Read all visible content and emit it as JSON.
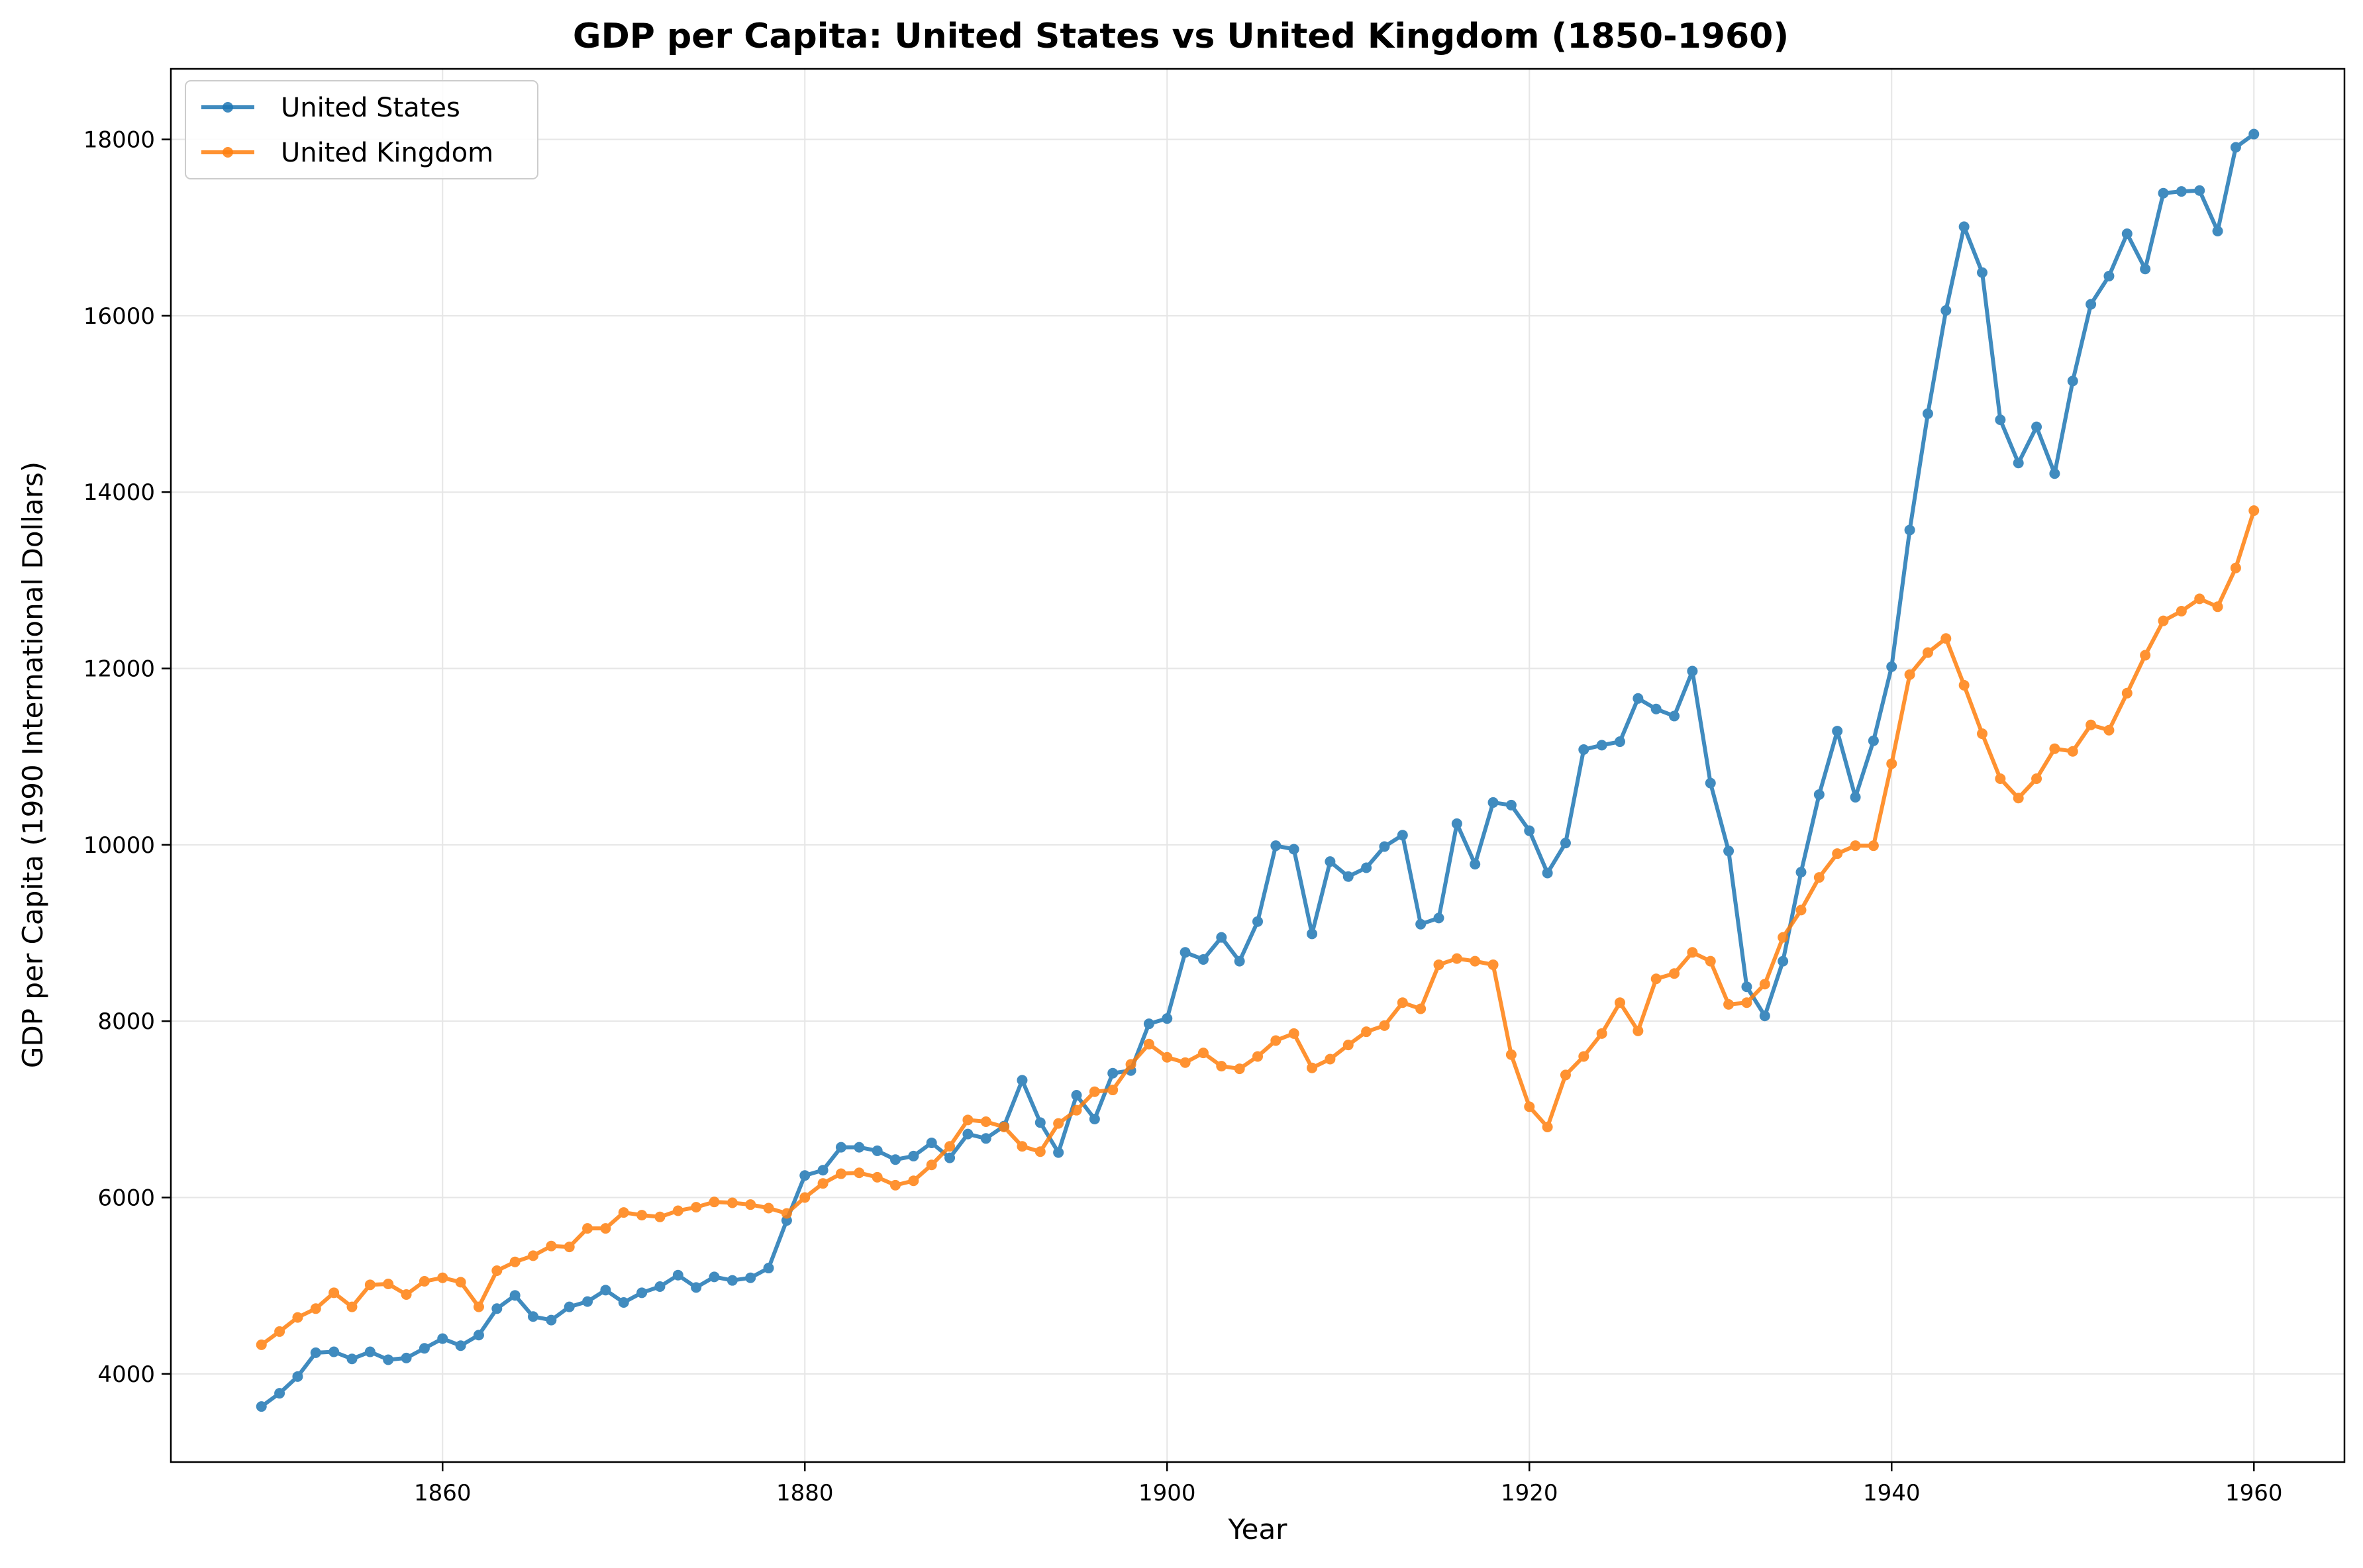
{
  "chart_data": {
    "type": "line",
    "title": "GDP per Capita: United States vs United Kingdom (1850-1960)",
    "xlabel": "Year",
    "ylabel": "GDP per Capita (1990 International Dollars)",
    "xlim": [
      1845,
      1965
    ],
    "ylim": [
      3000,
      18800
    ],
    "xticks": [
      1860,
      1880,
      1900,
      1920,
      1940,
      1960
    ],
    "yticks": [
      4000,
      6000,
      8000,
      10000,
      12000,
      14000,
      16000,
      18000
    ],
    "grid": true,
    "legend_position": "top-left",
    "x": [
      1850,
      1851,
      1852,
      1853,
      1854,
      1855,
      1856,
      1857,
      1858,
      1859,
      1860,
      1861,
      1862,
      1863,
      1864,
      1865,
      1866,
      1867,
      1868,
      1869,
      1870,
      1871,
      1872,
      1873,
      1874,
      1875,
      1876,
      1877,
      1878,
      1879,
      1880,
      1881,
      1882,
      1883,
      1884,
      1885,
      1886,
      1887,
      1888,
      1889,
      1890,
      1891,
      1892,
      1893,
      1894,
      1895,
      1896,
      1897,
      1898,
      1899,
      1900,
      1901,
      1902,
      1903,
      1904,
      1905,
      1906,
      1907,
      1908,
      1909,
      1910,
      1911,
      1912,
      1913,
      1914,
      1915,
      1916,
      1917,
      1918,
      1919,
      1920,
      1921,
      1922,
      1923,
      1924,
      1925,
      1926,
      1927,
      1928,
      1929,
      1930,
      1931,
      1932,
      1933,
      1934,
      1935,
      1936,
      1937,
      1938,
      1939,
      1940,
      1941,
      1942,
      1943,
      1944,
      1945,
      1946,
      1947,
      1948,
      1949,
      1950,
      1951,
      1952,
      1953,
      1954,
      1955,
      1956,
      1957,
      1958,
      1959,
      1960
    ],
    "series": [
      {
        "name": "United States",
        "color": "#1f77b4",
        "values": [
          3630,
          3780,
          3970,
          4240,
          4250,
          4170,
          4250,
          4160,
          4180,
          4290,
          4400,
          4320,
          4440,
          4740,
          4890,
          4650,
          4610,
          4760,
          4820,
          4950,
          4810,
          4920,
          4990,
          5120,
          4980,
          5100,
          5060,
          5090,
          5200,
          5740,
          6250,
          6310,
          6570,
          6570,
          6530,
          6430,
          6470,
          6620,
          6450,
          6720,
          6670,
          6810,
          7330,
          6850,
          6510,
          7160,
          6890,
          7410,
          7440,
          7970,
          8030,
          8780,
          8700,
          8950,
          8680,
          9130,
          9990,
          9950,
          8990,
          9810,
          9640,
          9740,
          9980,
          10110,
          9100,
          9170,
          10240,
          9780,
          10480,
          10450,
          10160,
          9680,
          10020,
          11080,
          11130,
          11170,
          11660,
          11540,
          11460,
          11970,
          10700,
          9930,
          8390,
          8060,
          8680,
          9690,
          10570,
          11290,
          10540,
          11180,
          12020,
          13570,
          14890,
          16060,
          17010,
          16490,
          14820,
          14330,
          14740,
          14210,
          15260,
          16130,
          16450,
          16930,
          16530,
          17390,
          17410,
          17420,
          16960,
          17910,
          18060
        ]
      },
      {
        "name": "United Kingdom",
        "color": "#ff7f0e",
        "values": [
          4330,
          4480,
          4640,
          4740,
          4920,
          4760,
          5010,
          5020,
          4900,
          5050,
          5090,
          5040,
          4760,
          5170,
          5270,
          5340,
          5450,
          5440,
          5650,
          5650,
          5830,
          5800,
          5780,
          5850,
          5890,
          5950,
          5940,
          5920,
          5880,
          5820,
          6000,
          6160,
          6270,
          6280,
          6230,
          6140,
          6190,
          6370,
          6580,
          6880,
          6860,
          6800,
          6580,
          6520,
          6840,
          6990,
          7200,
          7220,
          7510,
          7740,
          7590,
          7530,
          7640,
          7490,
          7460,
          7600,
          7780,
          7860,
          7470,
          7570,
          7730,
          7880,
          7950,
          8210,
          8140,
          8640,
          8710,
          8680,
          8640,
          7620,
          7030,
          6800,
          7390,
          7600,
          7860,
          8210,
          7890,
          8480,
          8540,
          8780,
          8680,
          8190,
          8210,
          8420,
          8950,
          9260,
          9630,
          9900,
          9990,
          9990,
          10920,
          11930,
          12180,
          12340,
          11810,
          11260,
          10750,
          10530,
          10750,
          11090,
          11060,
          11360,
          11300,
          11720,
          12150,
          12540,
          12650,
          12790,
          12700,
          13140,
          13790
        ]
      }
    ]
  }
}
